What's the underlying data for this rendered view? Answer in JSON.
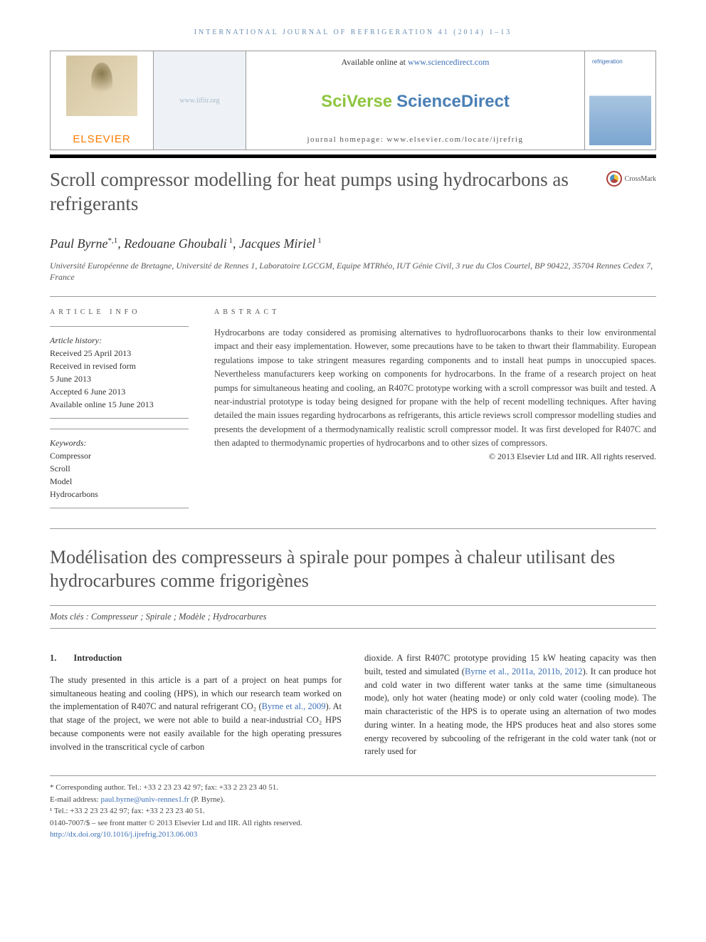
{
  "journal_header": "INTERNATIONAL JOURNAL OF REFRIGERATION 41 (2014) 1–13",
  "top": {
    "elsevier": "ELSEVIER",
    "iif": "www.iifiir.org",
    "available": "Available online at ",
    "available_link": "www.sciencedirect.com",
    "sv1": "SciVerse",
    "sv2": "ScienceDirect",
    "homepage": "journal homepage: www.elsevier.com/locate/ijrefrig",
    "cover_title": "refrigeration"
  },
  "article": {
    "title": "Scroll compressor modelling for heat pumps using hydrocarbons as refrigerants",
    "crossmark": "CrossMark",
    "authors_html": "Paul Byrne*,1, Redouane Ghoubali 1, Jacques Miriel 1",
    "author1": "Paul Byrne",
    "author1_sup": "*,1",
    "author2": "Redouane Ghoubali",
    "author2_sup": " 1",
    "author3": "Jacques Miriel",
    "author3_sup": " 1",
    "affiliation": "Université Européenne de Bretagne, Université de Rennes 1, Laboratoire LGCGM, Equipe MTRhéo, IUT Génie Civil, 3 rue du Clos Courtel, BP 90422, 35704 Rennes Cedex 7, France"
  },
  "info": {
    "head": "ARTICLE INFO",
    "history_label": "Article history:",
    "h1": "Received 25 April 2013",
    "h2": "Received in revised form",
    "h3": "5 June 2013",
    "h4": "Accepted 6 June 2013",
    "h5": "Available online 15 June 2013",
    "keywords_label": "Keywords:",
    "kw": [
      "Compressor",
      "Scroll",
      "Model",
      "Hydrocarbons"
    ]
  },
  "abstract": {
    "head": "ABSTRACT",
    "text": "Hydrocarbons are today considered as promising alternatives to hydrofluorocarbons thanks to their low environmental impact and their easy implementation. However, some precautions have to be taken to thwart their flammability. European regulations impose to take stringent measures regarding components and to install heat pumps in unoccupied spaces. Nevertheless manufacturers keep working on components for hydrocarbons. In the frame of a research project on heat pumps for simultaneous heating and cooling, an R407C prototype working with a scroll compressor was built and tested. A near-industrial prototype is today being designed for propane with the help of recent modelling techniques. After having detailed the main issues regarding hydrocarbons as refrigerants, this article reviews scroll compressor modelling studies and presents the development of a thermodynamically realistic scroll compressor model. It was first developed for R407C and then adapted to thermodynamic properties of hydrocarbons and to other sizes of compressors.",
    "copyright": "© 2013 Elsevier Ltd and IIR. All rights reserved."
  },
  "french": {
    "title": "Modélisation des compresseurs à spirale pour pompes à chaleur utilisant des hydrocarbures comme frigorigènes",
    "mots": "Mots clés : Compresseur ; Spirale ; Modèle ; Hydrocarbures"
  },
  "body": {
    "sec_num": "1.",
    "sec_title": "Introduction",
    "p1a": "The study presented in this article is a part of a project on heat pumps for simultaneous heating and cooling (HPS), in which our research team worked on the implementation of R407C and natural refrigerant CO₂ (",
    "p1cite": "Byrne et al., 2009",
    "p1b": "). At that stage of the project, we were not able to build a near-industrial CO₂ HPS because components were not easily available for the high operating pressures involved in the transcritical cycle of carbon",
    "p2a": "dioxide. A first R407C prototype providing 15 kW heating capacity was then built, tested and simulated (",
    "p2cite": "Byrne et al., 2011a, 2011b, 2012",
    "p2b": "). It can produce hot and cold water in two different water tanks at the same time (simultaneous mode), only hot water (heating mode) or only cold water (cooling mode). The main characteristic of the HPS is to operate using an alternation of two modes during winter. In a heating mode, the HPS produces heat and also stores some energy recovered by subcooling of the refrigerant in the cold water tank (not or rarely used for"
  },
  "footnotes": {
    "corresponding": "* Corresponding author. Tel.: +33 2 23 23 42 97; fax: +33 2 23 23 40 51.",
    "email_label": "E-mail address: ",
    "email": "paul.byrne@univ-rennes1.fr",
    "email_suffix": " (P. Byrne).",
    "tel1": "¹ Tel.: +33 2 23 23 42 97; fax: +33 2 23 23 40 51.",
    "front": "0140-7007/$ – see front matter © 2013 Elsevier Ltd and IIR. All rights reserved.",
    "doi": "http://dx.doi.org/10.1016/j.ijrefrig.2013.06.003"
  },
  "colors": {
    "link": "#3b6fb6",
    "elsevier_orange": "#ff7b00",
    "sv_green": "#8fc640",
    "sv_blue": "#4a7fb5",
    "title_gray": "#545454"
  }
}
